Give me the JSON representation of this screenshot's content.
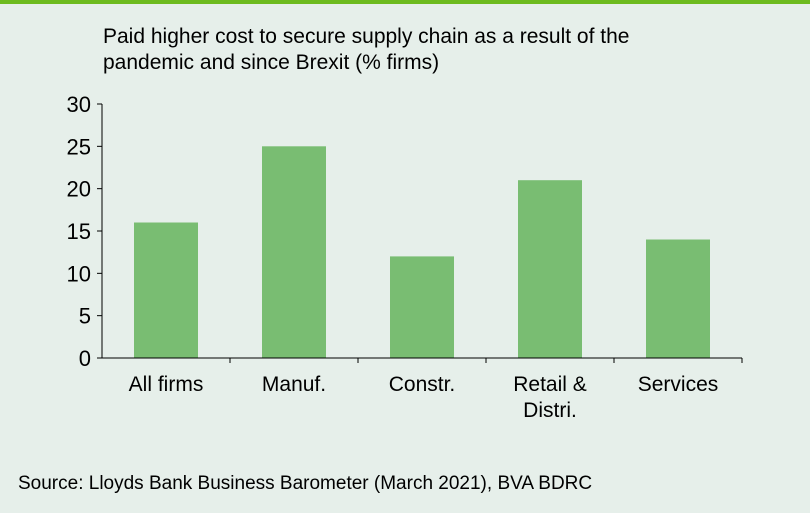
{
  "colors": {
    "accent": "#6dbb1f",
    "bar": "#79bd72",
    "axis": "#000000",
    "background": "#e6efea"
  },
  "title_lines": [
    "Paid higher cost to secure supply chain as a result of the",
    "pandemic and since Brexit (% firms)"
  ],
  "source": "Source: Lloyds Bank Business Barometer (March 2021), BVA BDRC",
  "chart_data": {
    "type": "bar",
    "title": "Paid higher cost to secure supply chain as a result of the pandemic and since Brexit (% firms)",
    "categories": [
      [
        "All firms"
      ],
      [
        "Manuf."
      ],
      [
        "Constr."
      ],
      [
        "Retail &",
        "Distri."
      ],
      [
        "Services"
      ]
    ],
    "values": [
      16,
      25,
      12,
      21,
      14
    ],
    "xlabel": "",
    "ylabel": "",
    "ylim": [
      0,
      30
    ],
    "yticks": [
      0,
      5,
      10,
      15,
      20,
      25,
      30
    ],
    "grid": false,
    "legend": "none"
  }
}
